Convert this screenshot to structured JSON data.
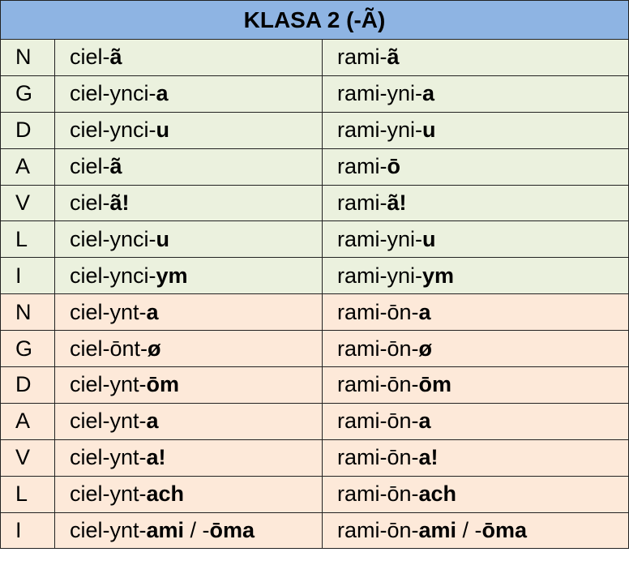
{
  "colors": {
    "header_bg": "#8eb4e3",
    "singular_bg": "#ebf1de",
    "plural_bg": "#fde9d9",
    "border": "#222222"
  },
  "table": {
    "title": "KLASA 2 (-Ã)",
    "rows": [
      {
        "group": "singular",
        "case": "N",
        "w1": [
          "ciel-",
          "ã",
          ""
        ],
        "w2": [
          "rami-",
          "ã",
          ""
        ]
      },
      {
        "group": "singular",
        "case": "G",
        "w1": [
          "ciel-ynci-",
          "a",
          ""
        ],
        "w2": [
          "rami-yni-",
          "a",
          ""
        ]
      },
      {
        "group": "singular",
        "case": "D",
        "w1": [
          "ciel-ynci-",
          "u",
          ""
        ],
        "w2": [
          "rami-yni-",
          "u",
          ""
        ]
      },
      {
        "group": "singular",
        "case": "A",
        "w1": [
          "ciel-",
          "ã",
          ""
        ],
        "w2": [
          "rami-",
          "ō",
          ""
        ]
      },
      {
        "group": "singular",
        "case": "V",
        "w1": [
          "ciel-",
          "ã!",
          ""
        ],
        "w2": [
          "rami-",
          "ã!",
          ""
        ]
      },
      {
        "group": "singular",
        "case": "L",
        "w1": [
          "ciel-ynci-",
          "u",
          ""
        ],
        "w2": [
          "rami-yni-",
          "u",
          ""
        ]
      },
      {
        "group": "singular",
        "case": "I",
        "w1": [
          "ciel-ynci-",
          "ym",
          ""
        ],
        "w2": [
          "rami-yni-",
          "ym",
          ""
        ]
      },
      {
        "group": "plural",
        "case": "N",
        "w1": [
          "ciel-ynt-",
          "a",
          ""
        ],
        "w2": [
          "rami-ōn-",
          "a",
          ""
        ]
      },
      {
        "group": "plural",
        "case": "G",
        "w1": [
          "ciel-ōnt-",
          "ø",
          ""
        ],
        "w2": [
          "rami-ōn-",
          "ø",
          ""
        ]
      },
      {
        "group": "plural",
        "case": "D",
        "w1": [
          "ciel-ynt-",
          "ōm",
          ""
        ],
        "w2": [
          "rami-ōn-",
          "ōm",
          ""
        ]
      },
      {
        "group": "plural",
        "case": "A",
        "w1": [
          "ciel-ynt-",
          "a",
          ""
        ],
        "w2": [
          "rami-ōn-",
          "a",
          ""
        ]
      },
      {
        "group": "plural",
        "case": "V",
        "w1": [
          "ciel-ynt-",
          "a!",
          ""
        ],
        "w2": [
          "rami-ōn-",
          "a!",
          ""
        ]
      },
      {
        "group": "plural",
        "case": "L",
        "w1": [
          "ciel-ynt-",
          "ach",
          ""
        ],
        "w2": [
          "rami-ōn-",
          "ach",
          ""
        ]
      },
      {
        "group": "plural",
        "case": "I",
        "w1": [
          "ciel-ynt-",
          "ami",
          " / -",
          "ōma"
        ],
        "w2": [
          "rami-ōn-",
          "ami",
          " / -",
          "ōma"
        ]
      }
    ]
  }
}
